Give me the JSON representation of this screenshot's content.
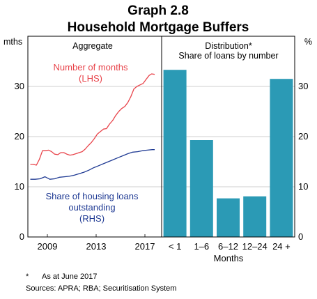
{
  "chart_data": {
    "title": "Graph 2.8",
    "subtitle": "Household Mortgage Buffers",
    "left_panel": {
      "type": "line",
      "title": "Aggregate",
      "left_axis_unit": "mths",
      "ylim": [
        0,
        40
      ],
      "yticks": [
        "0",
        "10",
        "20",
        "30"
      ],
      "xticks": [
        "2009",
        "2013",
        "2017"
      ],
      "series": [
        {
          "name": "Number of months (LHS)",
          "label_lines": [
            "Number of months",
            "(LHS)"
          ],
          "color": "#e8434a",
          "axis": "left",
          "x": [
            2007.6,
            2007.85,
            2008.1,
            2008.35,
            2008.6,
            2008.85,
            2009.1,
            2009.35,
            2009.6,
            2009.85,
            2010.1,
            2010.35,
            2010.6,
            2010.85,
            2011.1,
            2011.35,
            2011.6,
            2011.85,
            2012.1,
            2012.35,
            2012.6,
            2012.85,
            2013.1,
            2013.35,
            2013.6,
            2013.85,
            2014.1,
            2014.35,
            2014.6,
            2014.85,
            2015.1,
            2015.35,
            2015.6,
            2015.85,
            2016.1,
            2016.35,
            2016.6,
            2016.85,
            2017.1,
            2017.35
          ],
          "values": [
            14.5,
            14.5,
            14.3,
            15.5,
            17.2,
            17.2,
            17.3,
            17.0,
            16.5,
            16.4,
            16.8,
            16.8,
            16.5,
            16.3,
            16.4,
            16.6,
            16.8,
            17.0,
            17.5,
            18.2,
            18.8,
            19.6,
            20.5,
            21.0,
            21.5,
            21.6,
            22.5,
            23.2,
            24.2,
            25.0,
            25.6,
            26.0,
            26.8,
            28.0,
            29.5,
            30.0,
            30.3,
            30.6,
            31.4,
            32.2
          ],
          "tail": {
            "x": [
              2017.55,
              2017.8
            ],
            "values": [
              32.5,
              32.4
            ]
          }
        },
        {
          "name": "Share of housing loans outstanding (RHS)",
          "label_lines": [
            "Share of housing loans",
            "outstanding",
            "(RHS)"
          ],
          "color": "#1f3a93",
          "axis": "right",
          "x": [
            2007.6,
            2008.0,
            2008.4,
            2008.8,
            2009.2,
            2009.6,
            2010.0,
            2010.4,
            2010.8,
            2011.2,
            2011.6,
            2012.0,
            2012.4,
            2012.8,
            2013.2,
            2013.6,
            2014.0,
            2014.4,
            2014.8,
            2015.2,
            2015.6,
            2016.0,
            2016.4,
            2016.8,
            2017.2,
            2017.6,
            2017.8
          ],
          "values": [
            11.5,
            11.5,
            11.6,
            12.0,
            11.5,
            11.6,
            11.9,
            12.0,
            12.1,
            12.3,
            12.6,
            12.9,
            13.3,
            13.8,
            14.2,
            14.6,
            15.0,
            15.4,
            15.8,
            16.2,
            16.6,
            16.9,
            17.0,
            17.2,
            17.3,
            17.4,
            17.4
          ]
        }
      ]
    },
    "right_panel": {
      "type": "bar",
      "title": "Distribution*",
      "subtitle": "Share of loans by number",
      "right_axis_unit": "%",
      "ylim": [
        0,
        40
      ],
      "yticks": [
        "0",
        "10",
        "20",
        "30"
      ],
      "xlabel": "Months",
      "color": "#2b9ab5",
      "categories": [
        "< 1",
        "1–6",
        "6–12",
        "12–24",
        "24 +"
      ],
      "values": [
        33.3,
        19.3,
        7.7,
        8.1,
        31.5
      ]
    },
    "footnotes": [
      "*",
      "As at June 2017",
      "Sources: APRA; RBA; Securitisation System"
    ]
  }
}
